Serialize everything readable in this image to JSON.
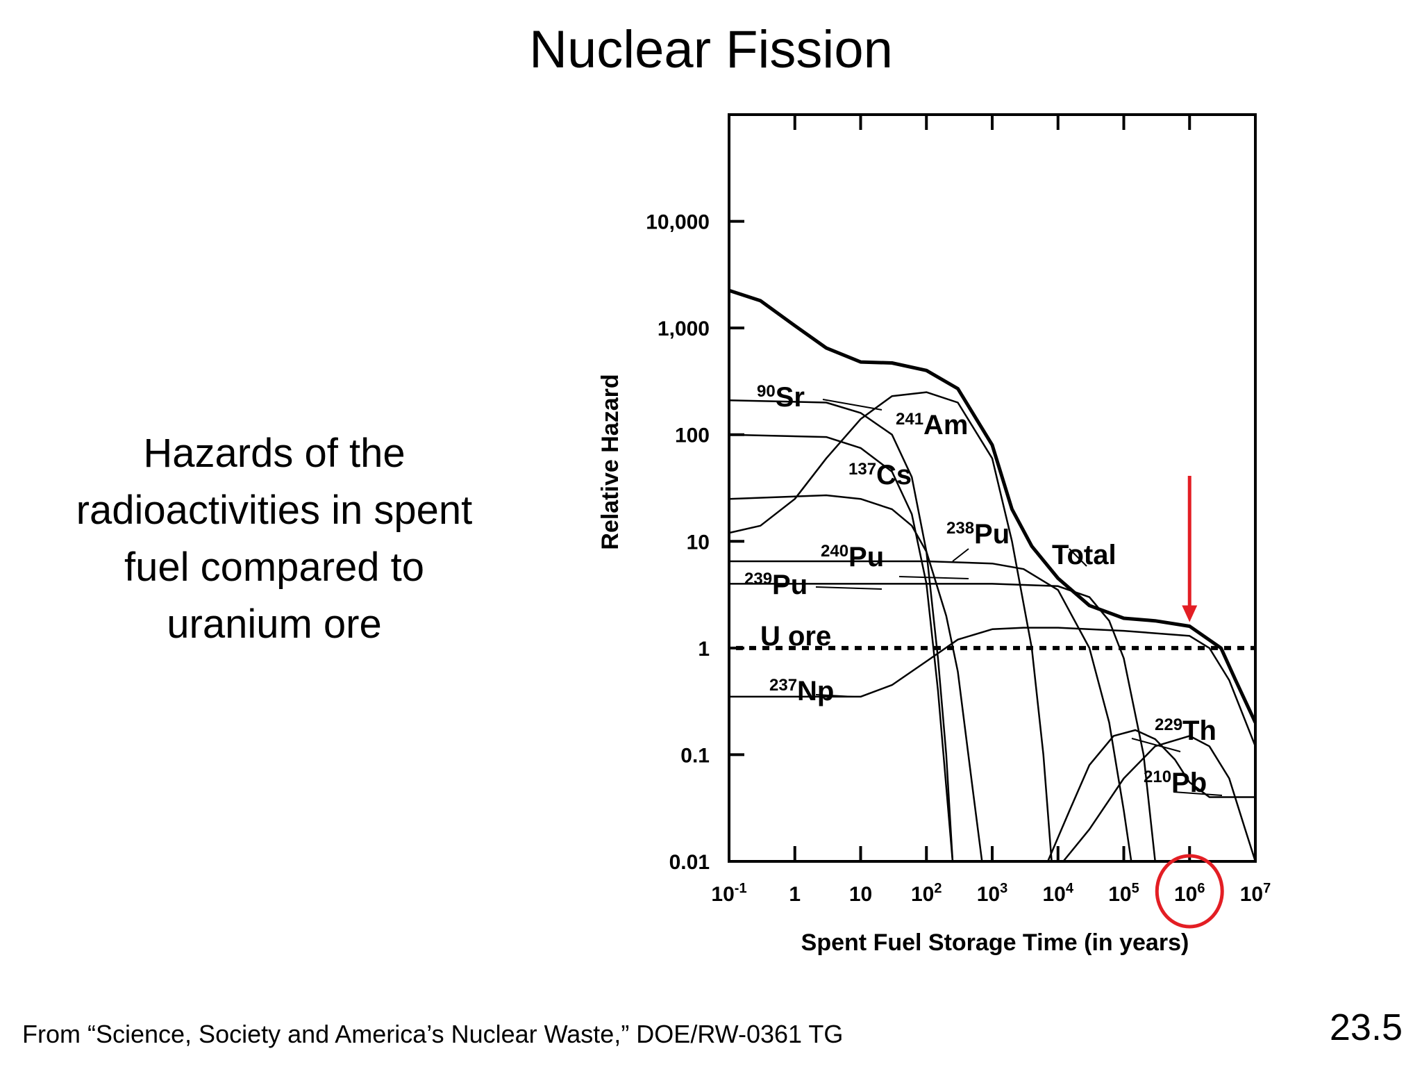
{
  "slide": {
    "title": "Nuclear Fission",
    "caption_lines": [
      "Hazards of the",
      "radioactivities in spent",
      "fuel compared to",
      "uranium ore"
    ],
    "source": "From “Science, Society and America’s Nuclear Waste,” DOE/RW-0361 TG",
    "slide_number": "23.5"
  },
  "chart_data": {
    "type": "line",
    "title": "",
    "xlabel": "Spent Fuel Storage Time (in years)",
    "ylabel": "Relative Hazard",
    "x_scale": "log",
    "y_scale": "log",
    "xlim": [
      0.1,
      10000000
    ],
    "ylim": [
      0.01,
      100000
    ],
    "grid": false,
    "x_ticks": [
      {
        "value": 0.1,
        "base": "10",
        "exp": "-1"
      },
      {
        "value": 1,
        "base": "1",
        "exp": ""
      },
      {
        "value": 10,
        "base": "10",
        "exp": ""
      },
      {
        "value": 100,
        "base": "10",
        "exp": "2"
      },
      {
        "value": 1000,
        "base": "10",
        "exp": "3"
      },
      {
        "value": 10000,
        "base": "10",
        "exp": "4"
      },
      {
        "value": 100000,
        "base": "10",
        "exp": "5"
      },
      {
        "value": 1000000,
        "base": "10",
        "exp": "6"
      },
      {
        "value": 10000000,
        "base": "10",
        "exp": "7"
      }
    ],
    "y_ticks": [
      {
        "value": 0.01,
        "label": "0.01"
      },
      {
        "value": 0.1,
        "label": "0.1"
      },
      {
        "value": 1,
        "label": "1"
      },
      {
        "value": 10,
        "label": "10"
      },
      {
        "value": 100,
        "label": "100"
      },
      {
        "value": 1000,
        "label": "1,000"
      },
      {
        "value": 10000,
        "label": "10,000"
      }
    ],
    "reference_line": {
      "name": "U ore",
      "y": 1
    },
    "series": [
      {
        "name": "Total",
        "label": "Total",
        "sup": "",
        "thick": true,
        "points": [
          [
            0.1,
            2250
          ],
          [
            0.3,
            1800
          ],
          [
            1,
            1050
          ],
          [
            3,
            650
          ],
          [
            10,
            480
          ],
          [
            30,
            470
          ],
          [
            100,
            400
          ],
          [
            300,
            270
          ],
          [
            1000,
            80
          ],
          [
            2000,
            20
          ],
          [
            4000,
            9
          ],
          [
            10000,
            4.5
          ],
          [
            30000,
            2.5
          ],
          [
            100000,
            1.9
          ],
          [
            300000,
            1.8
          ],
          [
            1000000,
            1.6
          ],
          [
            3000000,
            1.0
          ],
          [
            5000000,
            0.5
          ],
          [
            10000000,
            0.2
          ]
        ]
      },
      {
        "name": "90Sr",
        "label": "Sr",
        "sup": "90",
        "points": [
          [
            0.1,
            210
          ],
          [
            3,
            200
          ],
          [
            10,
            160
          ],
          [
            30,
            100
          ],
          [
            60,
            40
          ],
          [
            100,
            8
          ],
          [
            150,
            0.8
          ],
          [
            200,
            0.1
          ],
          [
            250,
            0.01
          ]
        ]
      },
      {
        "name": "241Am",
        "label": "Am",
        "sup": "241",
        "points": [
          [
            0.1,
            12
          ],
          [
            0.3,
            14
          ],
          [
            1,
            25
          ],
          [
            3,
            60
          ],
          [
            10,
            140
          ],
          [
            30,
            230
          ],
          [
            100,
            250
          ],
          [
            300,
            200
          ],
          [
            1000,
            60
          ],
          [
            2000,
            10
          ],
          [
            4000,
            1
          ],
          [
            6000,
            0.1
          ],
          [
            8000,
            0.01
          ]
        ]
      },
      {
        "name": "137Cs",
        "label": "Cs",
        "sup": "137",
        "points": [
          [
            0.1,
            100
          ],
          [
            3,
            95
          ],
          [
            10,
            75
          ],
          [
            30,
            45
          ],
          [
            60,
            18
          ],
          [
            100,
            4
          ],
          [
            150,
            0.4
          ],
          [
            200,
            0.05
          ],
          [
            250,
            0.01
          ]
        ]
      },
      {
        "name": "238Pu",
        "label": "Pu",
        "sup": "238",
        "points": [
          [
            0.1,
            25
          ],
          [
            3,
            27
          ],
          [
            10,
            25
          ],
          [
            30,
            20
          ],
          [
            60,
            14
          ],
          [
            100,
            8
          ],
          [
            200,
            2
          ],
          [
            300,
            0.6
          ],
          [
            500,
            0.05
          ],
          [
            700,
            0.01
          ]
        ]
      },
      {
        "name": "240Pu",
        "label": "Pu",
        "sup": "240",
        "points": [
          [
            0.1,
            6.5
          ],
          [
            100,
            6.5
          ],
          [
            1000,
            6.2
          ],
          [
            3000,
            5.5
          ],
          [
            10000,
            3.5
          ],
          [
            30000,
            1
          ],
          [
            60000,
            0.2
          ],
          [
            100000,
            0.03
          ],
          [
            130000,
            0.01
          ]
        ]
      },
      {
        "name": "239Pu",
        "label": "Pu",
        "sup": "239",
        "points": [
          [
            0.1,
            4
          ],
          [
            1000,
            4
          ],
          [
            10000,
            3.8
          ],
          [
            30000,
            3
          ],
          [
            60000,
            1.8
          ],
          [
            100000,
            0.8
          ],
          [
            200000,
            0.1
          ],
          [
            300000,
            0.01
          ]
        ]
      },
      {
        "name": "237Np",
        "label": "Np",
        "sup": "237",
        "points": [
          [
            0.1,
            0.35
          ],
          [
            10,
            0.35
          ],
          [
            30,
            0.45
          ],
          [
            100,
            0.75
          ],
          [
            300,
            1.2
          ],
          [
            1000,
            1.5
          ],
          [
            3000,
            1.55
          ],
          [
            10000,
            1.55
          ],
          [
            100000,
            1.45
          ],
          [
            1000000,
            1.3
          ],
          [
            2000000,
            1.0
          ],
          [
            4000000,
            0.5
          ],
          [
            10000000,
            0.12
          ]
        ]
      },
      {
        "name": "229Th",
        "label": "Th",
        "sup": "229",
        "points": [
          [
            7000,
            0.01
          ],
          [
            15000,
            0.03
          ],
          [
            30000,
            0.08
          ],
          [
            70000,
            0.15
          ],
          [
            150000,
            0.17
          ],
          [
            300000,
            0.14
          ],
          [
            600000,
            0.09
          ],
          [
            1000000,
            0.055
          ],
          [
            2000000,
            0.04
          ],
          [
            5000000,
            0.04
          ],
          [
            10000000,
            0.04
          ]
        ]
      },
      {
        "name": "210Pb",
        "label": "Pb",
        "sup": "210",
        "points": [
          [
            12000,
            0.01
          ],
          [
            30000,
            0.02
          ],
          [
            100000,
            0.06
          ],
          [
            300000,
            0.12
          ],
          [
            1000000,
            0.15
          ],
          [
            2000000,
            0.12
          ],
          [
            4000000,
            0.06
          ],
          [
            7000000,
            0.02
          ],
          [
            10000000,
            0.01
          ]
        ]
      }
    ],
    "annotations": [
      {
        "type": "arrow",
        "color": "#e31e24",
        "x": 1000000,
        "points_to_y": 1.6
      },
      {
        "type": "circle",
        "color": "#e31e24",
        "around": "x tick 10^6"
      }
    ]
  }
}
